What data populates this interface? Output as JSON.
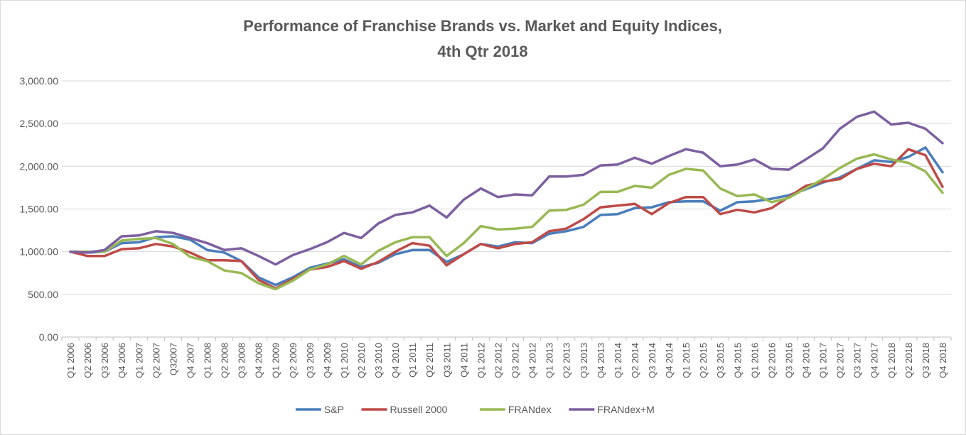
{
  "chart_data": {
    "type": "line",
    "title": "Performance of Franchise Brands vs. Market and Equity Indices,",
    "subtitle": "4th Qtr 2018",
    "xlabel": "",
    "ylabel": "",
    "ylim": [
      0,
      3000
    ],
    "yticks": [
      "0.00",
      "500.00",
      "1,000.00",
      "1,500.00",
      "2,000.00",
      "2,500.00",
      "3,000.00"
    ],
    "grid": true,
    "legend": "bottom",
    "categories": [
      "Q1 2006",
      "Q2 2006",
      "Q3 2006",
      "Q4 2006",
      "Q1 2007",
      "Q2 2007",
      "Q32007",
      "Q4 2007",
      "Q1 2008",
      "Q2 2008",
      "Q3 2008",
      "Q4 2008",
      "Q1 2009",
      "Q2 2009",
      "Q3 2009",
      "Q4 2009",
      "Q1 2010",
      "Q2 2010",
      "Q3 2010",
      "Q4 2010",
      "Q1 2011",
      "Q2 2011",
      "Q3 2011",
      "Q4 2011",
      "Q1 2012",
      "Q2 2012",
      "Q3 2012",
      "Q4 2012",
      "Q1 2013",
      "Q2 2013",
      "Q3 2013",
      "Q4 2013",
      "Q1 2014",
      "Q2 2014",
      "Q3 2014",
      "Q4 2014",
      "Q1 2015",
      "Q2 2015",
      "Q3 2015",
      "Q4 2015",
      "Q1 2016",
      "Q2 2016",
      "Q3 2016",
      "Q4 2016",
      "Q1 2017",
      "Q2 2017",
      "Q3 2017",
      "Q4 2017",
      "Q1 2018",
      "Q2 2018",
      "Q3 2018",
      "Q4 2018"
    ],
    "series": [
      {
        "name": "S&P",
        "color": "#4a7ebb",
        "values": [
          1000,
          990,
          1000,
          1100,
          1110,
          1170,
          1180,
          1140,
          1020,
          990,
          890,
          700,
          610,
          700,
          810,
          860,
          910,
          820,
          870,
          970,
          1020,
          1020,
          880,
          970,
          1090,
          1060,
          1110,
          1100,
          1210,
          1240,
          1290,
          1430,
          1440,
          1510,
          1520,
          1580,
          1590,
          1590,
          1480,
          1580,
          1590,
          1620,
          1660,
          1730,
          1810,
          1870,
          1970,
          2070,
          2050,
          2110,
          2220,
          1930
        ]
      },
      {
        "name": "Russell 2000",
        "color": "#be4b48",
        "values": [
          1000,
          950,
          950,
          1030,
          1040,
          1090,
          1060,
          990,
          900,
          900,
          890,
          670,
          570,
          680,
          790,
          820,
          890,
          800,
          880,
          1000,
          1100,
          1070,
          840,
          970,
          1090,
          1040,
          1090,
          1110,
          1240,
          1270,
          1380,
          1520,
          1540,
          1560,
          1440,
          1570,
          1640,
          1640,
          1440,
          1490,
          1460,
          1510,
          1640,
          1770,
          1820,
          1850,
          1970,
          2030,
          2000,
          2200,
          2130,
          1760
        ]
      },
      {
        "name": "FRANdex",
        "color": "#98b954",
        "values": [
          1000,
          1000,
          1000,
          1130,
          1150,
          1160,
          1090,
          940,
          890,
          780,
          750,
          630,
          560,
          660,
          790,
          850,
          950,
          850,
          1010,
          1110,
          1170,
          1170,
          950,
          1100,
          1300,
          1260,
          1270,
          1290,
          1480,
          1490,
          1550,
          1700,
          1700,
          1770,
          1750,
          1900,
          1970,
          1950,
          1740,
          1650,
          1670,
          1580,
          1630,
          1740,
          1850,
          1980,
          2090,
          2140,
          2080,
          2040,
          1940,
          1690
        ]
      },
      {
        "name": "FRANdex+M",
        "color": "#7d60a0",
        "values": [
          1000,
          990,
          1020,
          1180,
          1190,
          1240,
          1220,
          1160,
          1100,
          1020,
          1040,
          950,
          850,
          960,
          1030,
          1110,
          1220,
          1160,
          1330,
          1430,
          1460,
          1540,
          1400,
          1610,
          1740,
          1640,
          1670,
          1660,
          1880,
          1880,
          1900,
          2010,
          2020,
          2100,
          2030,
          2120,
          2200,
          2160,
          2000,
          2020,
          2080,
          1970,
          1960,
          2080,
          2210,
          2440,
          2580,
          2640,
          2490,
          2510,
          2440,
          2270
        ]
      }
    ]
  }
}
